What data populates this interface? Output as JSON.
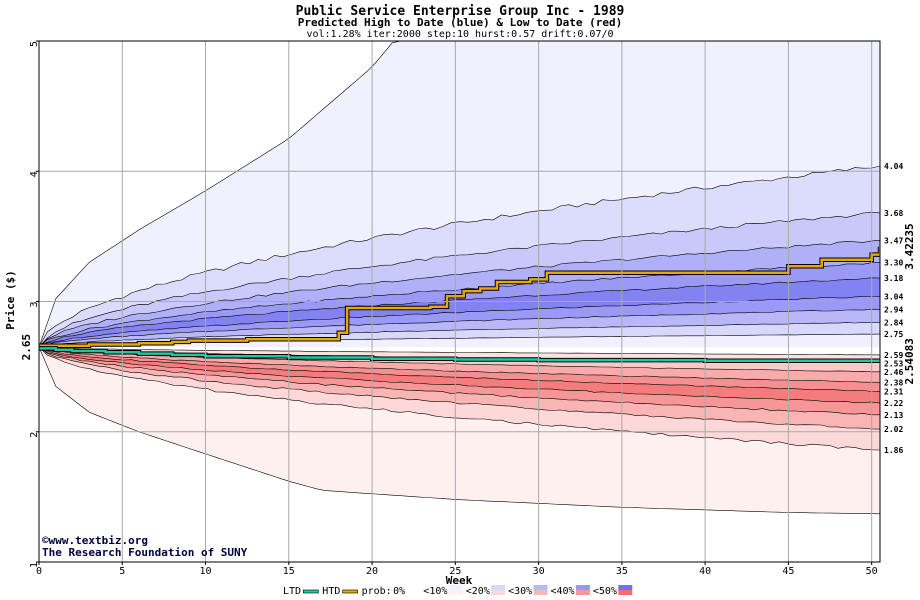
{
  "chart_data": {
    "type": "area",
    "title": "Public Service Enterprise Group Inc - 1989",
    "subtitle": "Predicted High to Date (blue) &  Low to Date (red)",
    "params": "vol:1.28% iter:2000 step:10 hurst:0.57 drift:0.07/0",
    "xlabel": "Week",
    "ylabel": "Price ($)",
    "xlim": [
      0,
      50.5
    ],
    "ylim": [
      1,
      5
    ],
    "xticks": [
      0,
      5,
      10,
      15,
      20,
      25,
      30,
      35,
      40,
      45,
      50
    ],
    "yticks": [
      1,
      2,
      3,
      4,
      5
    ],
    "grid": true,
    "start_price": 2.65,
    "start_label": "2.65",
    "high_final_label": "3.42235",
    "low_final_label": "2.54083",
    "high_color": "#4a4aee",
    "low_color": "#f05050",
    "htd_color": "#e8a800",
    "ltd_color": "#20c8a0",
    "upper_band_finals": [
      4.04,
      3.68,
      3.47,
      3.3,
      3.18,
      3.04,
      2.94,
      2.84,
      2.75
    ],
    "lower_band_finals": [
      2.59,
      2.53,
      2.46,
      2.38,
      2.31,
      2.22,
      2.13,
      2.02,
      1.86
    ],
    "right_labels": [
      "4.04",
      "3.68",
      "3.47",
      "3.30",
      "3.18",
      "3.04",
      "2.94",
      "2.84",
      "2.75",
      "2.59",
      "2.53",
      "2.46",
      "2.38",
      "2.31",
      "2.22",
      "2.13",
      "2.02",
      "1.86"
    ],
    "outer_envelope": {
      "upper": {
        "x": [
          0,
          1,
          3,
          6,
          10,
          15,
          20,
          21.3
        ],
        "y": [
          2.65,
          3.02,
          3.3,
          3.55,
          3.85,
          4.25,
          4.8,
          5.0
        ]
      },
      "lower": {
        "x": [
          0,
          1,
          3,
          6,
          10,
          15,
          17,
          25,
          35,
          45,
          50.5
        ],
        "y": [
          2.65,
          2.35,
          2.15,
          2.0,
          1.83,
          1.62,
          1.55,
          1.48,
          1.42,
          1.38,
          1.37
        ]
      }
    },
    "series": [
      {
        "name": "HTD",
        "x": [
          0,
          3,
          6,
          8,
          9,
          12.5,
          18,
          18.5,
          23.5,
          24.5,
          25.5,
          26.5,
          27.5,
          29.5,
          30.5,
          45,
          47,
          50,
          50.5
        ],
        "y": [
          2.66,
          2.67,
          2.68,
          2.69,
          2.7,
          2.71,
          2.76,
          2.95,
          2.96,
          3.04,
          3.08,
          3.1,
          3.15,
          3.17,
          3.22,
          3.27,
          3.32,
          3.36,
          3.42
        ]
      },
      {
        "name": "LTD",
        "x": [
          0,
          1,
          2,
          4,
          6,
          8,
          10,
          15,
          20,
          25,
          30,
          40,
          50.5
        ],
        "y": [
          2.64,
          2.63,
          2.62,
          2.61,
          2.6,
          2.59,
          2.58,
          2.57,
          2.56,
          2.555,
          2.55,
          2.545,
          2.54
        ]
      }
    ],
    "credits": [
      "www.textbiz.org",
      "The Research Foundation of SUNY"
    ],
    "legend": {
      "items": [
        {
          "label": "LTD",
          "color": "#20c8a0"
        },
        {
          "label": "HTD",
          "color": "#e8a800"
        }
      ],
      "prob_label": "prob:",
      "prob_items": [
        {
          "label": "0%",
          "blue": "#ffffff",
          "red": "#ffffff"
        },
        {
          "label": "<10%",
          "blue": "#f0f0ff",
          "red": "#fff0f0"
        },
        {
          "label": "<20%",
          "blue": "#d8d8fc",
          "red": "#fcd8d8"
        },
        {
          "label": "<30%",
          "blue": "#b8b8f8",
          "red": "#f8b8b8"
        },
        {
          "label": "<40%",
          "blue": "#9898f4",
          "red": "#f49898"
        },
        {
          "label": "<50%",
          "blue": "#7070f0",
          "red": "#f07070"
        }
      ]
    }
  }
}
